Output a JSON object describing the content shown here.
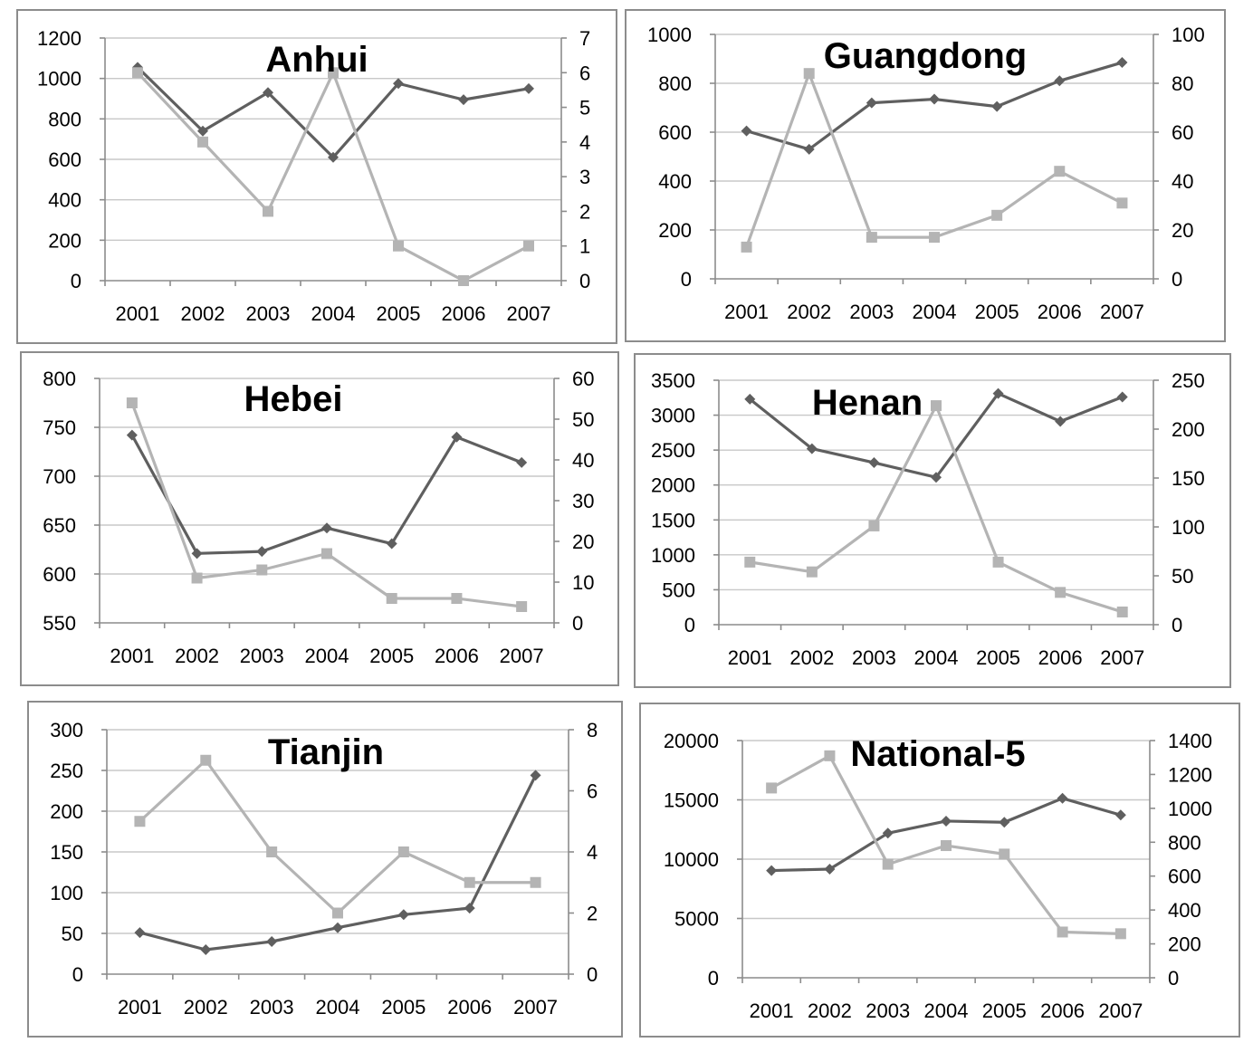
{
  "chart_data": [
    {
      "type": "line",
      "title": "Anhui",
      "categories": [
        "2001",
        "2002",
        "2003",
        "2004",
        "2005",
        "2006",
        "2007"
      ],
      "y_left": {
        "ticks": [
          "0",
          "200",
          "400",
          "600",
          "800",
          "1000",
          "1200"
        ],
        "range": [
          0,
          1200
        ]
      },
      "y_right": {
        "ticks": [
          "0",
          "1",
          "2",
          "3",
          "4",
          "5",
          "6",
          "7"
        ],
        "range": [
          0,
          7
        ]
      },
      "series": [
        {
          "axis": "left",
          "marker": "diamond",
          "color": "#5f5f5f",
          "values": [
            1055,
            740,
            930,
            610,
            975,
            895,
            950
          ]
        },
        {
          "axis": "right",
          "marker": "square",
          "color": "#b4b4b4",
          "values": [
            6,
            4,
            2,
            6,
            1,
            0,
            1
          ]
        }
      ],
      "grid": true
    },
    {
      "type": "line",
      "title": "Guangdong",
      "categories": [
        "2001",
        "2002",
        "2003",
        "2004",
        "2005",
        "2006",
        "2007"
      ],
      "y_left": {
        "ticks": [
          "0",
          "200",
          "400",
          "600",
          "800",
          "1000"
        ],
        "range": [
          0,
          1000
        ]
      },
      "y_right": {
        "ticks": [
          "0",
          "20",
          "40",
          "60",
          "80",
          "100"
        ],
        "range": [
          0,
          100
        ]
      },
      "series": [
        {
          "axis": "left",
          "marker": "diamond",
          "color": "#5f5f5f",
          "values": [
            605,
            530,
            720,
            735,
            705,
            810,
            885
          ]
        },
        {
          "axis": "right",
          "marker": "square",
          "color": "#b4b4b4",
          "values": [
            13,
            84,
            17,
            17,
            26,
            44,
            31
          ]
        }
      ],
      "grid": true
    },
    {
      "type": "line",
      "title": "Hebei",
      "categories": [
        "2001",
        "2002",
        "2003",
        "2004",
        "2005",
        "2006",
        "2007"
      ],
      "y_left": {
        "ticks": [
          "550",
          "600",
          "650",
          "700",
          "750",
          "800"
        ],
        "range": [
          550,
          800
        ]
      },
      "y_right": {
        "ticks": [
          "0",
          "10",
          "20",
          "30",
          "40",
          "50",
          "60"
        ],
        "range": [
          0,
          60
        ]
      },
      "series": [
        {
          "axis": "left",
          "marker": "diamond",
          "color": "#5f5f5f",
          "values": [
            742,
            621,
            623,
            647,
            631,
            740,
            714
          ]
        },
        {
          "axis": "right",
          "marker": "square",
          "color": "#b4b4b4",
          "values": [
            54,
            11,
            13,
            17,
            6,
            6,
            4
          ]
        }
      ],
      "grid": true
    },
    {
      "type": "line",
      "title": "Henan",
      "categories": [
        "2001",
        "2002",
        "2003",
        "2004",
        "2005",
        "2006",
        "2007"
      ],
      "y_left": {
        "ticks": [
          "0",
          "500",
          "1000",
          "1500",
          "2000",
          "2500",
          "3000",
          "3500"
        ],
        "range": [
          0,
          3500
        ]
      },
      "y_right": {
        "ticks": [
          "0",
          "50",
          "100",
          "150",
          "200",
          "250"
        ],
        "range": [
          0,
          250
        ]
      },
      "series": [
        {
          "axis": "left",
          "marker": "diamond",
          "color": "#5f5f5f",
          "values": [
            3230,
            2520,
            2320,
            2110,
            3310,
            2910,
            3260
          ]
        },
        {
          "axis": "right",
          "marker": "square",
          "color": "#b4b4b4",
          "values": [
            64,
            54,
            101,
            224,
            64,
            33,
            13
          ]
        }
      ],
      "grid": true
    },
    {
      "type": "line",
      "title": "Tianjin",
      "categories": [
        "2001",
        "2002",
        "2003",
        "2004",
        "2005",
        "2006",
        "2007"
      ],
      "y_left": {
        "ticks": [
          "0",
          "50",
          "100",
          "150",
          "200",
          "250",
          "300"
        ],
        "range": [
          0,
          300
        ]
      },
      "y_right": {
        "ticks": [
          "0",
          "2",
          "4",
          "6",
          "8"
        ],
        "range": [
          0,
          8
        ]
      },
      "series": [
        {
          "axis": "left",
          "marker": "diamond",
          "color": "#5f5f5f",
          "values": [
            51,
            30,
            40,
            57,
            73,
            81,
            244
          ]
        },
        {
          "axis": "right",
          "marker": "square",
          "color": "#b4b4b4",
          "values": [
            5,
            7,
            4,
            2,
            4,
            3,
            3
          ]
        }
      ],
      "grid": true
    },
    {
      "type": "line",
      "title": "National-5",
      "categories": [
        "2001",
        "2002",
        "2003",
        "2004",
        "2005",
        "2006",
        "2007"
      ],
      "y_left": {
        "ticks": [
          "0",
          "5000",
          "10000",
          "15000",
          "20000"
        ],
        "range": [
          0,
          20000
        ]
      },
      "y_right": {
        "ticks": [
          "0",
          "200",
          "400",
          "600",
          "800",
          "1000",
          "1200",
          "1400"
        ],
        "range": [
          0,
          1400
        ]
      },
      "series": [
        {
          "axis": "left",
          "marker": "diamond",
          "color": "#5f5f5f",
          "values": [
            9040,
            9160,
            12190,
            13210,
            13110,
            15130,
            13720
          ]
        },
        {
          "axis": "right",
          "marker": "square",
          "color": "#b4b4b4",
          "values": [
            1120,
            1310,
            670,
            780,
            730,
            270,
            260
          ]
        }
      ],
      "grid": true
    }
  ]
}
